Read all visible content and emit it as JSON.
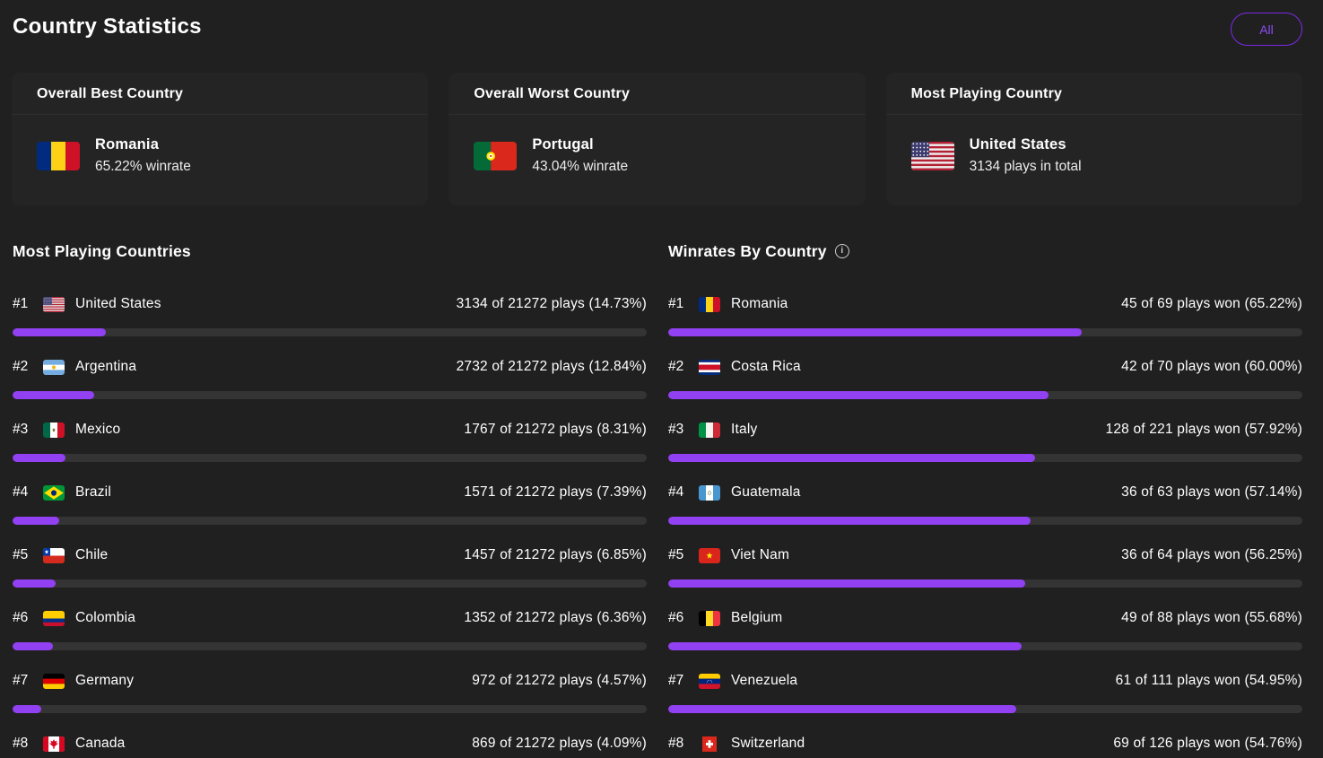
{
  "page": {
    "title": "Country Statistics",
    "filter_label": "All"
  },
  "colors": {
    "accent": "#9140f2",
    "bar_track": "#343434",
    "page_bg": "#202020",
    "card_bg": "#242424",
    "button_border": "#7c2ae8",
    "button_text": "#8d4df5"
  },
  "summary_cards": [
    {
      "title": "Overall Best Country",
      "flag": "ro",
      "country": "Romania",
      "subtitle": "65.22% winrate"
    },
    {
      "title": "Overall Worst Country",
      "flag": "pt",
      "country": "Portugal",
      "subtitle": "43.04% winrate"
    },
    {
      "title": "Most Playing Country",
      "flag": "us",
      "country": "United States",
      "subtitle": "3134 plays in total"
    }
  ],
  "most_playing": {
    "title": "Most Playing Countries",
    "rows": [
      {
        "rank": "#1",
        "flag": "us",
        "country": "United States",
        "value": "3134 of 21272 plays (14.73%)",
        "pct": 14.73
      },
      {
        "rank": "#2",
        "flag": "ar",
        "country": "Argentina",
        "value": "2732 of 21272 plays (12.84%)",
        "pct": 12.84
      },
      {
        "rank": "#3",
        "flag": "mx",
        "country": "Mexico",
        "value": "1767 of 21272 plays (8.31%)",
        "pct": 8.31
      },
      {
        "rank": "#4",
        "flag": "br",
        "country": "Brazil",
        "value": "1571 of 21272 plays (7.39%)",
        "pct": 7.39
      },
      {
        "rank": "#5",
        "flag": "cl",
        "country": "Chile",
        "value": "1457 of 21272 plays (6.85%)",
        "pct": 6.85
      },
      {
        "rank": "#6",
        "flag": "co",
        "country": "Colombia",
        "value": "1352 of 21272 plays (6.36%)",
        "pct": 6.36
      },
      {
        "rank": "#7",
        "flag": "de",
        "country": "Germany",
        "value": "972 of 21272 plays (4.57%)",
        "pct": 4.57
      },
      {
        "rank": "#8",
        "flag": "ca",
        "country": "Canada",
        "value": "869 of 21272 plays (4.09%)",
        "pct": 4.09
      }
    ]
  },
  "winrates": {
    "title": "Winrates By Country",
    "rows": [
      {
        "rank": "#1",
        "flag": "ro",
        "country": "Romania",
        "value": "45 of 69 plays won (65.22%)",
        "pct": 65.22
      },
      {
        "rank": "#2",
        "flag": "cr",
        "country": "Costa Rica",
        "value": "42 of 70 plays won (60.00%)",
        "pct": 60.0
      },
      {
        "rank": "#3",
        "flag": "it",
        "country": "Italy",
        "value": "128 of 221 plays won (57.92%)",
        "pct": 57.92
      },
      {
        "rank": "#4",
        "flag": "gt",
        "country": "Guatemala",
        "value": "36 of 63 plays won (57.14%)",
        "pct": 57.14
      },
      {
        "rank": "#5",
        "flag": "vn",
        "country": "Viet Nam",
        "value": "36 of 64 plays won (56.25%)",
        "pct": 56.25
      },
      {
        "rank": "#6",
        "flag": "be",
        "country": "Belgium",
        "value": "49 of 88 plays won (55.68%)",
        "pct": 55.68
      },
      {
        "rank": "#7",
        "flag": "ve",
        "country": "Venezuela",
        "value": "61 of 111 plays won (54.95%)",
        "pct": 54.95
      },
      {
        "rank": "#8",
        "flag": "ch",
        "country": "Switzerland",
        "value": "69 of 126 plays won (54.76%)",
        "pct": 54.76
      }
    ]
  }
}
